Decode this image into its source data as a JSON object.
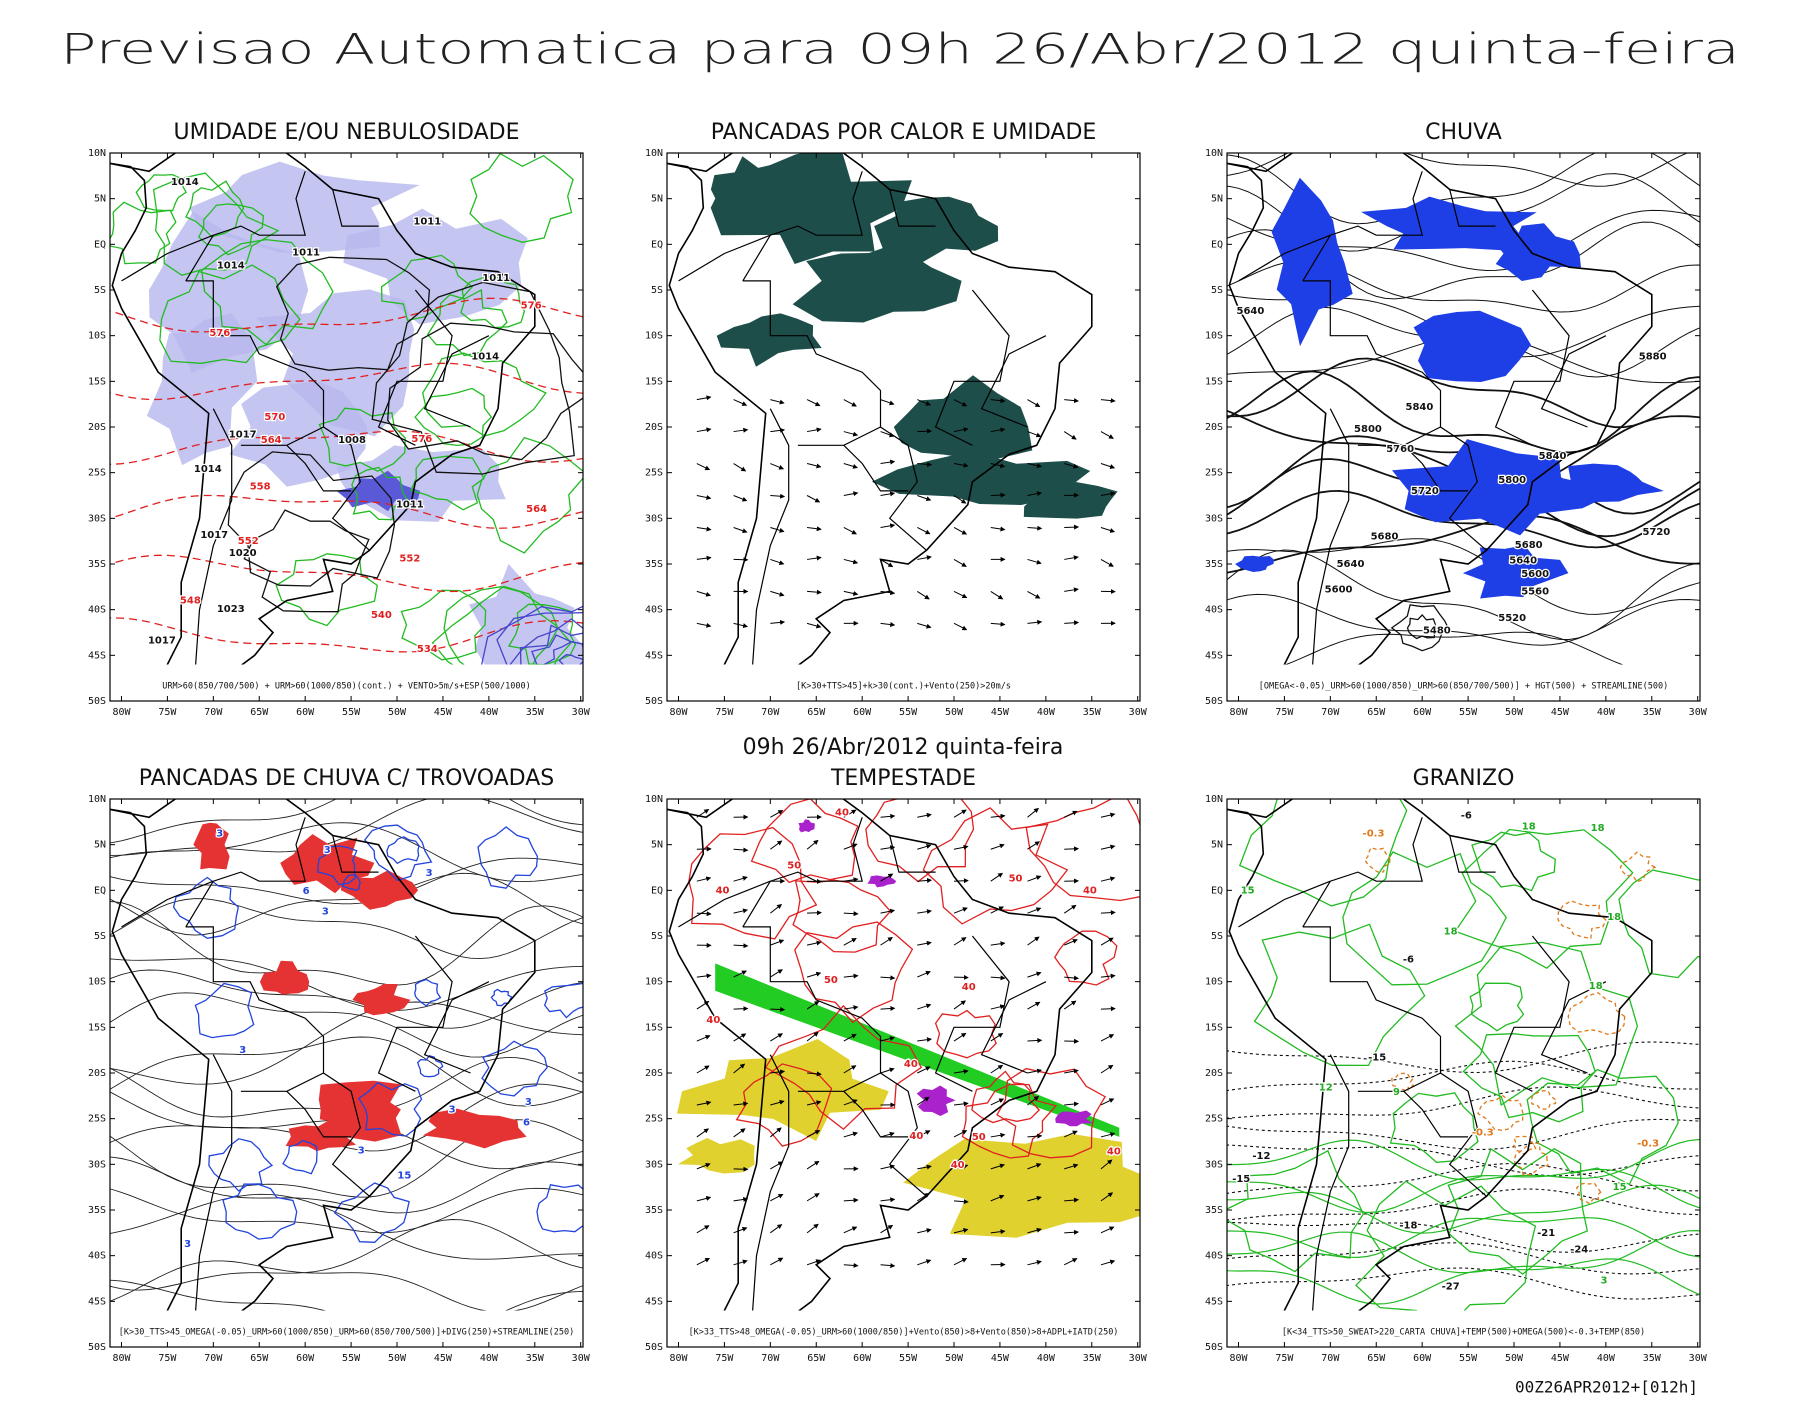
{
  "title": "Previsao Automatica para 09h 26/Abr/2012 quinta-feira",
  "subtitle": "09h 26/Abr/2012 quinta-feira",
  "footer": "00Z26APR2012+[012h]",
  "axes": {
    "lat_labels": [
      "10N",
      "5N",
      "EQ",
      "5S",
      "10S",
      "15S",
      "20S",
      "25S",
      "30S",
      "35S",
      "40S",
      "45S",
      "50S"
    ],
    "lon_labels": [
      "80W",
      "75W",
      "70W",
      "65W",
      "60W",
      "55W",
      "50W",
      "45W",
      "40W",
      "35W",
      "30W"
    ]
  },
  "panels": [
    {
      "title": "UMIDADE E/OU NEBULOSIDADE",
      "caption": "URM>60(850/700/500) + URM>60(1000/850)(cont.) + VENTO>5m/s+ESP(500/1000)",
      "labels": [
        "1014",
        "1011",
        "1011",
        "1014",
        "1011",
        "1014",
        "576",
        "576",
        "570",
        "564",
        "1017",
        "1008",
        "576",
        "1014",
        "558",
        "1011",
        "564",
        "1017",
        "552",
        "1020",
        "552",
        "548",
        "1023",
        "540",
        "1017",
        "534"
      ]
    },
    {
      "title": "PANCADAS POR CALOR E UMIDADE",
      "caption": "[K>30+TTS>45]+k>30(cont.)+Vento(250)>20m/s"
    },
    {
      "title": "CHUVA",
      "caption": "[OMEGA<-0.05)_URM>60(1000/850)_URM>60(850/700/500)] + HGT(500) + STREAMLINE(500)",
      "labels": [
        "5640",
        "5880",
        "5840",
        "5800",
        "5760",
        "5720",
        "5800",
        "5840",
        "5720",
        "5680",
        "5680",
        "5640",
        "5640",
        "5600",
        "5600",
        "5560",
        "5520",
        "5480"
      ]
    },
    {
      "title": "PANCADAS DE CHUVA C/ TROVOADAS",
      "caption": "[K>30_TTS>45_OMEGA(-0.05)_URM>60(1000/850)_URM>60(850/700/500)]+DIVG(250)+STREAMLINE(250)",
      "labels": [
        "3",
        "3",
        "6",
        "3",
        "3",
        "3",
        "6",
        "3",
        "3",
        "15",
        "3",
        "3"
      ]
    },
    {
      "title": "TEMPESTADE",
      "caption": "[K>33_TTS>48_OMEGA(-0.05)_URM>60(1000/850)]+Vento(850)>8+Vento(850)>8+ADPL+IATD(250)",
      "labels": [
        "40",
        "50",
        "40",
        "50",
        "40",
        "50",
        "40",
        "40",
        "40",
        "40",
        "50",
        "40",
        "40"
      ]
    },
    {
      "title": "GRANIZO",
      "caption": "[K<34_TTS>50_SWEAT>220_CARTA CHUVA]+TEMP(500)+OMEGA(500)<-0.3+TEMP(850)",
      "labels": [
        "18",
        "-6",
        "-0.3",
        "15",
        "18",
        "18",
        "-6",
        "18",
        "18",
        "-15",
        "12",
        "9",
        "-0.3",
        "-12",
        "-0.3",
        "-15",
        "15",
        "-18",
        "-21",
        "-24",
        "-27",
        "3"
      ]
    }
  ]
}
